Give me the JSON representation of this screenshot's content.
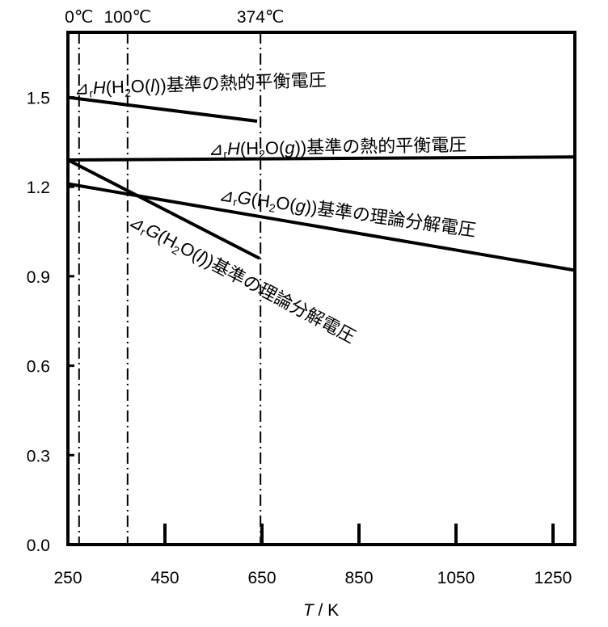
{
  "chart_data": {
    "type": "line",
    "title": "",
    "xlabel": "T / K",
    "xlabel_italic_part": "T",
    "xlabel_rest": " / K",
    "ylabel": "",
    "xlim": [
      250,
      1295
    ],
    "ylim": [
      0,
      1.72
    ],
    "xticks": [
      250,
      450,
      650,
      850,
      1050,
      1250
    ],
    "yticks": [
      "0.0",
      "0.3",
      "0.6",
      "0.9",
      "1.2",
      "1.5"
    ],
    "ytick_values": [
      0,
      0.3,
      0.6,
      0.9,
      1.2,
      1.5
    ],
    "grid": false,
    "reference_lines": [
      {
        "T": 273,
        "label": "0℃"
      },
      {
        "T": 373,
        "label": "100℃"
      },
      {
        "T": 647,
        "label": "374℃"
      }
    ],
    "series": [
      {
        "name": "ΔrH(H2O(l))基準の熱的平衡電圧",
        "label": {
          "sym": "⊿",
          "sub": "r",
          "var": "H",
          "pre": "(H",
          "sub2": "2",
          "mid": "O(",
          "phase": "l",
          "post": "))基準の熱的平衡電圧"
        },
        "x": [
          250,
          640
        ],
        "values": [
          1.5,
          1.42
        ]
      },
      {
        "name": "ΔrH(H2O(g))基準の熱的平衡電圧",
        "label": {
          "sym": "⊿",
          "sub": "r",
          "var": "H",
          "pre": "(H",
          "sub2": "2",
          "mid": "O(",
          "phase": "g",
          "post": "))基準の熱的平衡電圧"
        },
        "x": [
          250,
          1295
        ],
        "values": [
          1.29,
          1.3
        ]
      },
      {
        "name": "ΔrG(H2O(g))基準の理論分解電圧",
        "label": {
          "sym": "⊿",
          "sub": "r",
          "var": "G",
          "pre": "(H",
          "sub2": "2",
          "mid": "O(",
          "phase": "g",
          "post": "))基準の理論分解電圧"
        },
        "x": [
          250,
          1295
        ],
        "values": [
          1.21,
          0.92
        ]
      },
      {
        "name": "ΔrG(H2O(l))基準の理論分解電圧",
        "label": {
          "sym": "⊿",
          "sub": "r",
          "var": "G",
          "pre": "(H",
          "sub2": "2",
          "mid": "O(",
          "phase": "l",
          "post": "))基準の理論分解電圧"
        },
        "x": [
          250,
          645
        ],
        "values": [
          1.29,
          0.96
        ]
      }
    ]
  }
}
